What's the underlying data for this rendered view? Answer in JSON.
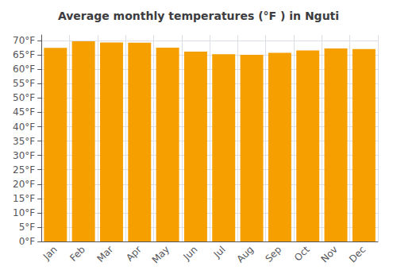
{
  "chart_data": {
    "type": "bar",
    "title": "Average monthly temperatures (°F ) in Nguti",
    "categories": [
      "Jan",
      "Feb",
      "Mar",
      "Apr",
      "May",
      "Jun",
      "Jul",
      "Aug",
      "Sep",
      "Oct",
      "Nov",
      "Dec"
    ],
    "values": [
      67.5,
      69.8,
      69.4,
      69.3,
      67.6,
      66.2,
      65.3,
      65.1,
      65.8,
      66.6,
      67.3,
      67.1
    ],
    "color": "#F5A000",
    "ylim": [
      0,
      72
    ],
    "yticks": [
      {
        "value": 0,
        "label": "0°F"
      },
      {
        "value": 5,
        "label": "5°F"
      },
      {
        "value": 10,
        "label": "10°F"
      },
      {
        "value": 15,
        "label": "15°F"
      },
      {
        "value": 20,
        "label": "20°F"
      },
      {
        "value": 25,
        "label": "25°F"
      },
      {
        "value": 30,
        "label": "30°F"
      },
      {
        "value": 35,
        "label": "35°F"
      },
      {
        "value": 40,
        "label": "40°F"
      },
      {
        "value": 45,
        "label": "45°F"
      },
      {
        "value": 50,
        "label": "50°F"
      },
      {
        "value": 55,
        "label": "55°F"
      },
      {
        "value": 60,
        "label": "60°F"
      },
      {
        "value": 65,
        "label": "65°F"
      },
      {
        "value": 70,
        "label": "70°F"
      }
    ],
    "grid": true
  }
}
